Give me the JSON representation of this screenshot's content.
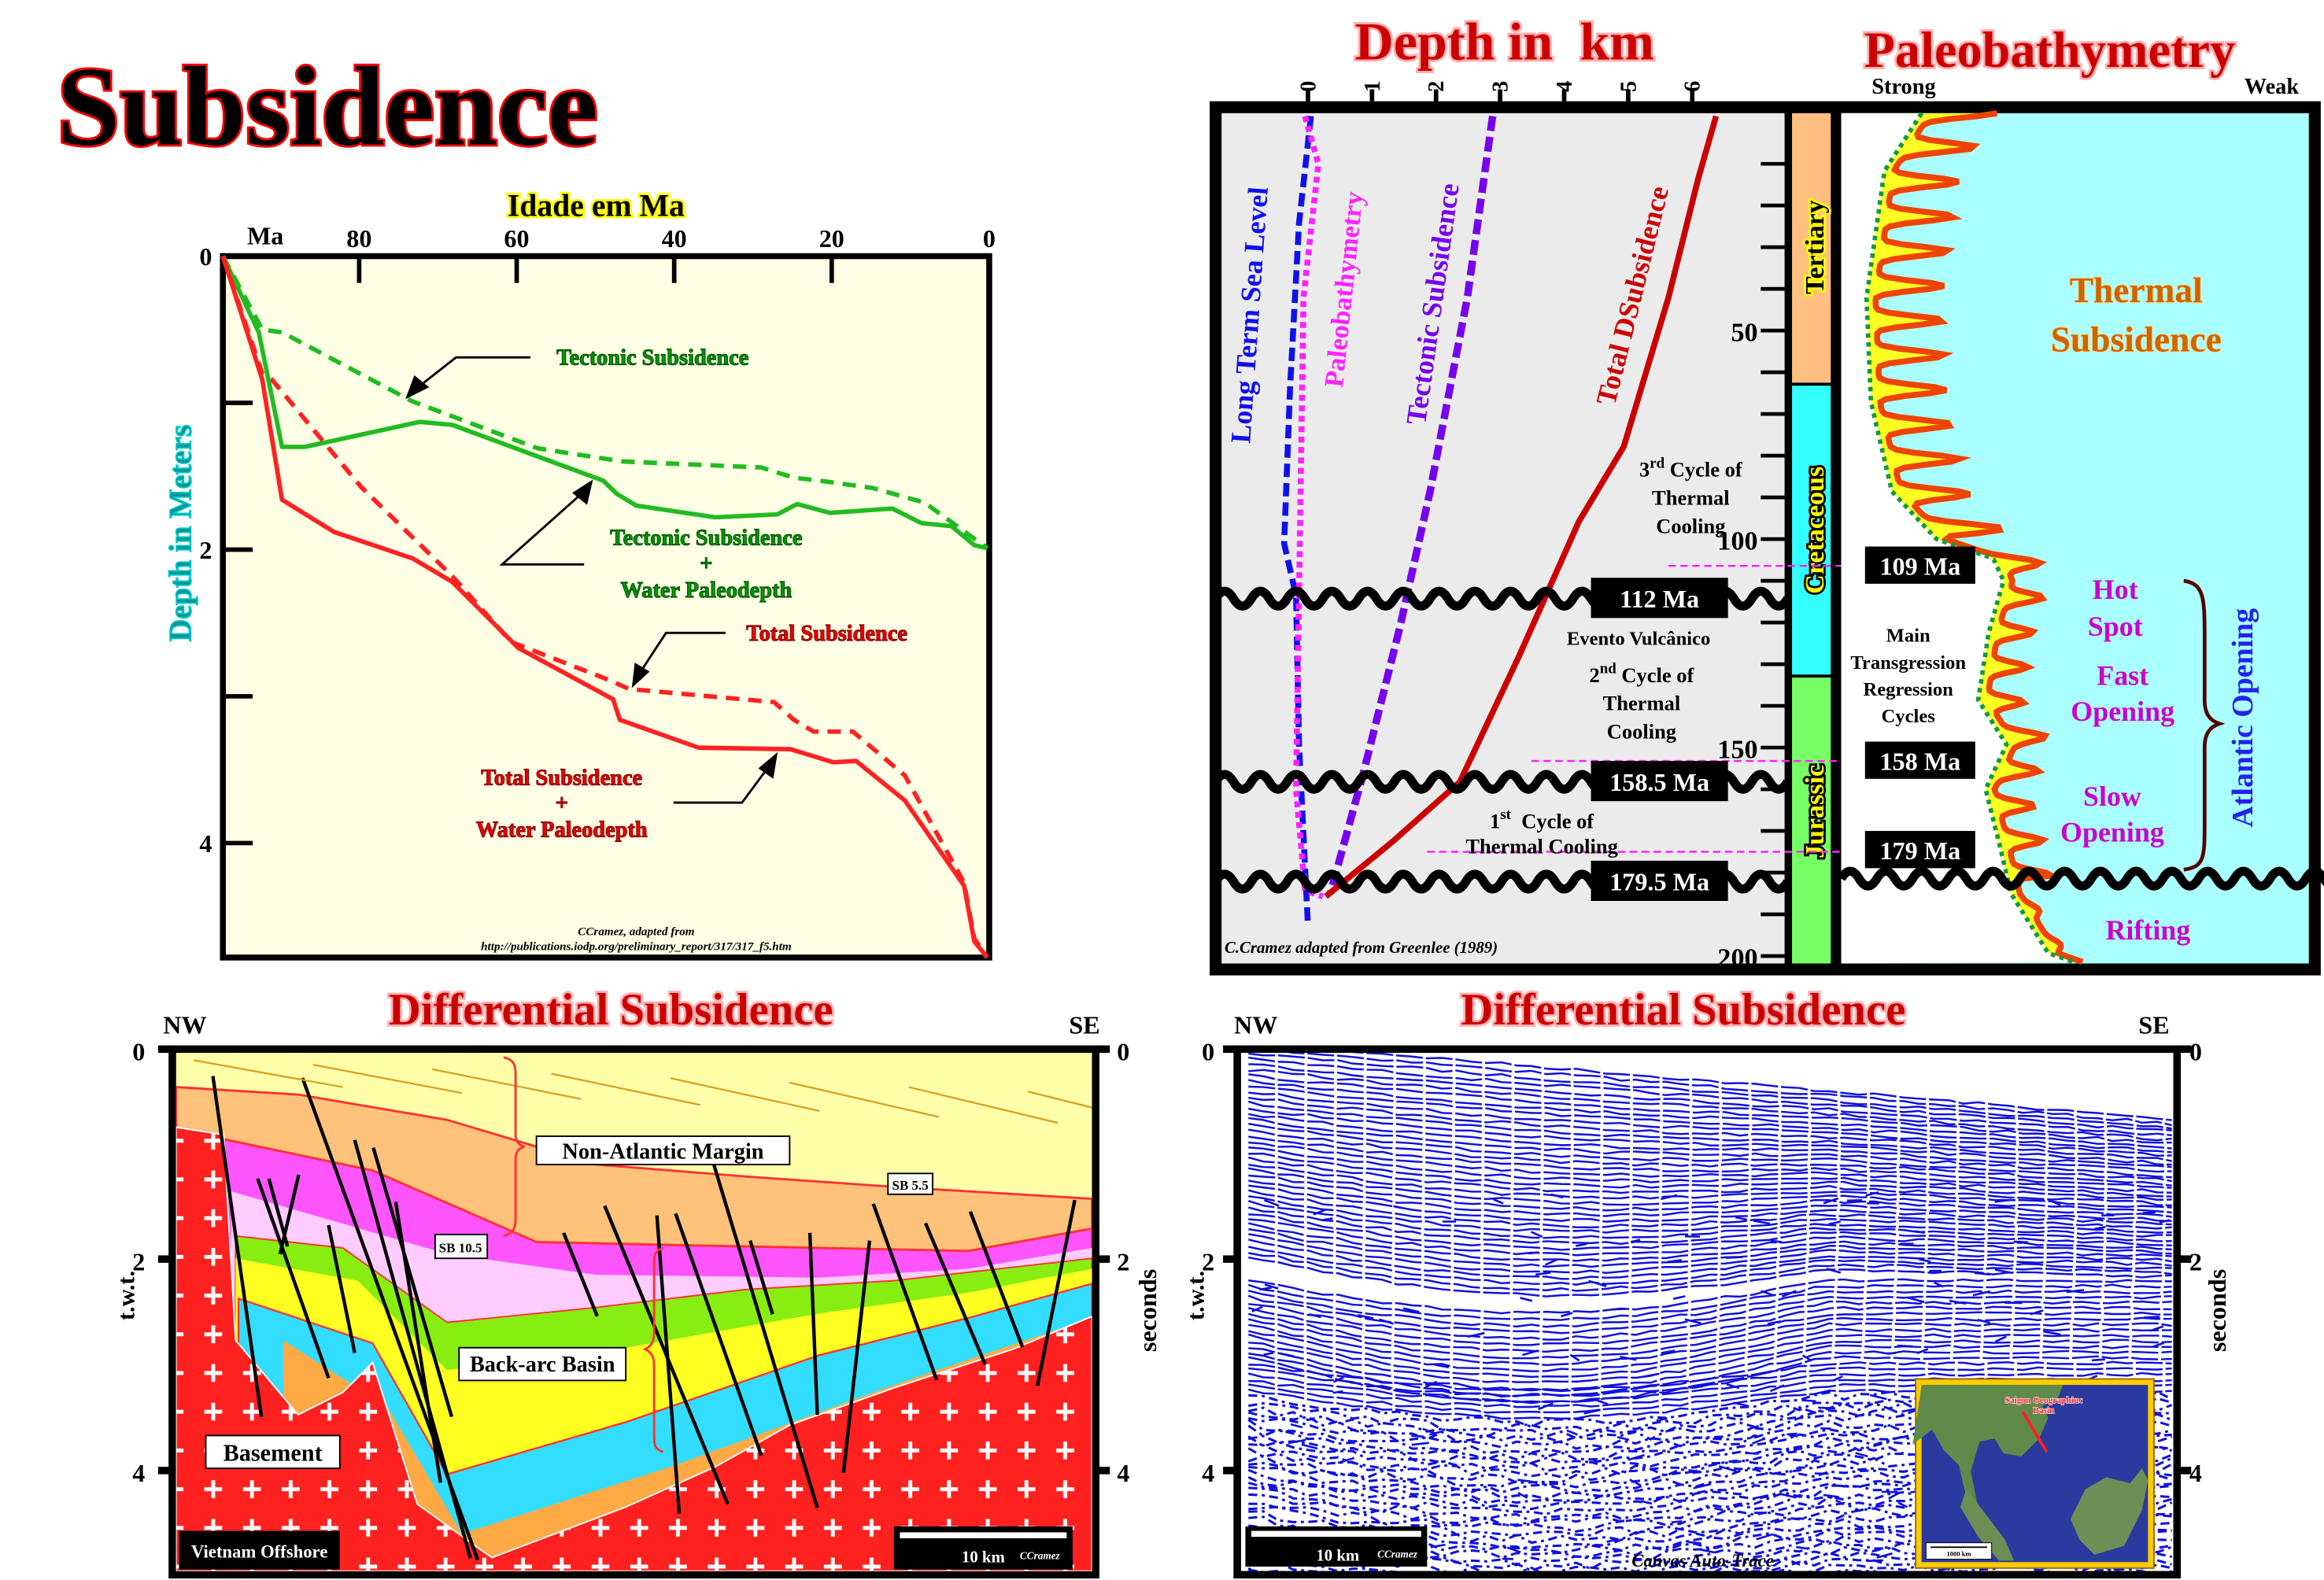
{
  "title": "Subsidence",
  "chart_data": {
    "type": "line",
    "title": "",
    "xlabel": "Idade em Ma",
    "x_unit_label": "Ma",
    "ylabel": "Depth in Meters",
    "xlim": [
      97.3,
      0
    ],
    "ylim": [
      0,
      4.78
    ],
    "xticks": [
      80,
      60,
      40,
      20,
      0
    ],
    "yticks": [
      0,
      2,
      4
    ],
    "grid": false,
    "series": [
      {
        "name": "Tectonic Subsidence",
        "color": "#22bb22",
        "style": "dashed",
        "x": [
          97.3,
          92.3,
          89.8,
          73.2,
          57.3,
          46.5,
          29.0,
          24.8,
          21.5,
          14.8,
          8.2,
          0.25
        ],
        "y": [
          0,
          0.5,
          0.52,
          0.99,
          1.31,
          1.4,
          1.44,
          1.51,
          1.53,
          1.58,
          1.68,
          1.99
        ]
      },
      {
        "name": "Tectonic Subsidence + Water Paleodepth",
        "color": "#22bb22",
        "style": "solid",
        "x": [
          97.3,
          92.75,
          89.8,
          86.9,
          72.3,
          68.2,
          49.0,
          47.3,
          44.8,
          34.8,
          26.9,
          24.4,
          20.25,
          12.3,
          8.6,
          4.8,
          1.9,
          0.25
        ],
        "y": [
          0,
          0.52,
          1.3,
          1.3,
          1.13,
          1.15,
          1.53,
          1.62,
          1.7,
          1.78,
          1.76,
          1.69,
          1.75,
          1.72,
          1.82,
          1.84,
          1.97,
          1.99
        ]
      },
      {
        "name": "Total Subsidence",
        "color": "#ff2222",
        "style": "dashed",
        "x": [
          97.3,
          92.3,
          91.1,
          79.8,
          68.2,
          60.7,
          48.2,
          45.7,
          27.3,
          24.8,
          22.3,
          17.3,
          10.7,
          3.2,
          1.9,
          0.25
        ],
        "y": [
          0,
          0.8,
          0.84,
          1.57,
          2.18,
          2.63,
          2.89,
          2.95,
          3.04,
          3.16,
          3.24,
          3.24,
          3.54,
          4.27,
          4.65,
          4.78
        ]
      },
      {
        "name": "Total Subsidence + Water Paleodepth",
        "color": "#ff2222",
        "style": "solid",
        "x": [
          97.3,
          92.3,
          89.8,
          83.2,
          73.2,
          68.2,
          59.8,
          47.75,
          46.9,
          36.9,
          25.25,
          19.8,
          16.9,
          10.7,
          3.2,
          1.9,
          0.25
        ],
        "y": [
          0,
          0.84,
          1.66,
          1.88,
          2.06,
          2.22,
          2.67,
          3.02,
          3.16,
          3.35,
          3.36,
          3.45,
          3.44,
          3.71,
          4.29,
          4.67,
          4.78
        ]
      }
    ],
    "annotations": {
      "tectonic": "Tectonic Subsidence",
      "tectonic_water": [
        "Tectonic Subsidence",
        "+",
        "Water Paleodepth"
      ],
      "total": "Total Subsidence",
      "total_water": [
        "Total Subsidence",
        "+",
        "Water Paleodepth"
      ]
    },
    "credit": [
      "CCramez, adapted from",
      "http://publications.iodp.org/preliminary_report/317/317_f5.htm"
    ]
  },
  "depth_panel": {
    "title": "Depth in  km",
    "depth_ticks": [
      "0",
      "1",
      "2",
      "3",
      "4",
      "5",
      "6"
    ],
    "age_ticks": [
      "50",
      "100",
      "150",
      "200"
    ],
    "curves": {
      "sea_level": "Long Term Sea Level",
      "paleobathymetry": "Paleobathymetry",
      "tectonic": "Tectonic Subsidence",
      "total": "Total DSubsidence"
    },
    "periods": [
      {
        "name": "Tertiary",
        "color": "#ffbf80"
      },
      {
        "name": "Cretaceous",
        "color": "#33ffff"
      },
      {
        "name": "Jurassic",
        "color": "#77ff66"
      }
    ],
    "unconformities": [
      "112 Ma",
      "158.5 Ma",
      "179.5 Ma"
    ],
    "cycle3": {
      "num": "3",
      "sup": "rd",
      "rest": " Cycle of",
      "l2": "Thermal",
      "l3": "Cooling"
    },
    "volcanic": "Evento Vulcânico",
    "cycle2": {
      "num": "2",
      "sup": "nd",
      "rest": " Cycle of",
      "l2": "Thermal",
      "l3": "Cooling"
    },
    "cycle1": {
      "num": "1",
      "sup": "st",
      "rest": "  Cycle of",
      "l2": "Thermal Cooling"
    },
    "credit": "C.Cramez adapted from Greenlee (1989)"
  },
  "paleo_panel": {
    "title": "Paleobathymetry",
    "strong": "Strong",
    "weak": "Weak",
    "thermal": [
      "Thermal",
      "Subsidence"
    ],
    "ages": [
      "109 Ma",
      "158 Ma",
      "179 Ma"
    ],
    "cycles": [
      "Main",
      "Transgression",
      "Regression",
      "Cycles"
    ],
    "hot_spot": [
      "Hot",
      "Spot"
    ],
    "fast": [
      "Fast",
      "Opening"
    ],
    "slow": [
      "Slow",
      "Opening"
    ],
    "atlantic": "Atlantic Opening",
    "rifting": "Rifting"
  },
  "section_left": {
    "title": "Differential Subsidence",
    "nw": "NW",
    "se": "SE",
    "ticks": [
      "0",
      "2",
      "4"
    ],
    "left_axis": "t.w.t.",
    "right_axis": "seconds",
    "labels": {
      "non_atlantic": "Non-Atlantic Margin",
      "sb55": "SB 5.5",
      "sb105": "SB 10.5",
      "backarc": "Back-arc Basin",
      "basement": "Basement",
      "location": "Vietnam Offshore",
      "scale": "10 km",
      "credit": "CCramez"
    }
  },
  "section_right": {
    "title": "Differential Subsidence",
    "nw": "NW",
    "se": "SE",
    "ticks": [
      "0",
      "2",
      "4"
    ],
    "left_axis": "t.w.t.",
    "right_axis": "seconds",
    "scale": "10 km",
    "credit": "CCramez",
    "software": "Canvas Auto-Trace",
    "inset": {
      "label": [
        "Saigon Geographiuc",
        "Basin"
      ],
      "scale": "1000 km"
    }
  }
}
